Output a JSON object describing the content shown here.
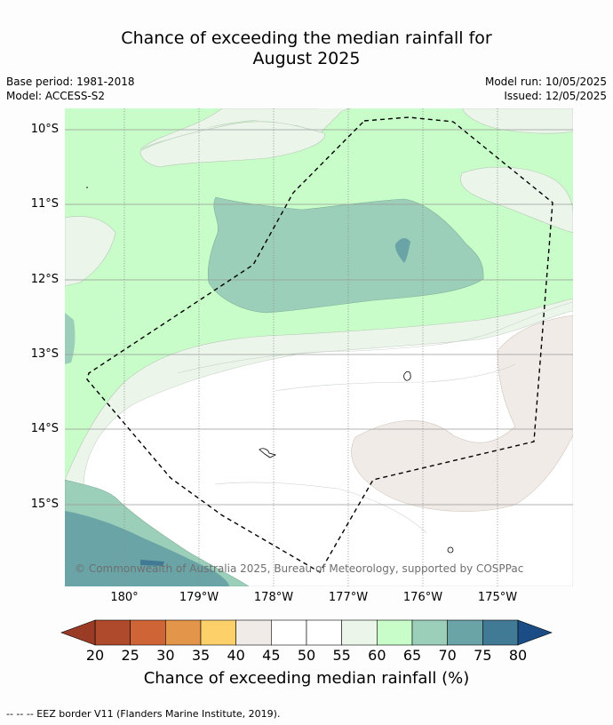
{
  "title_line1": "Chance of exceeding the median rainfall for",
  "title_line2": "August 2025",
  "base_period": "Base period: 1981-2018",
  "model": "Model: ACCESS-S2",
  "model_run": "Model run: 10/05/2025",
  "issued": "Issued: 12/05/2025",
  "lat_labels": [
    "10°S",
    "11°S",
    "12°S",
    "13°S",
    "14°S",
    "15°S"
  ],
  "lon_labels": [
    "180°",
    "179°W",
    "178°W",
    "177°W",
    "176°W",
    "175°W"
  ],
  "copyright": "© Commonwealth of Australia 2025, Bureau of Meteorology, supported by COSPPac",
  "colorbar": {
    "ticks": [
      "20",
      "25",
      "30",
      "35",
      "40",
      "45",
      "50",
      "55",
      "60",
      "65",
      "70",
      "75",
      "80"
    ],
    "colors": [
      "#b04a2c",
      "#cf6536",
      "#e39549",
      "#fdd06a",
      "#f0ebe6",
      "#ffffff",
      "#ffffff",
      "#ebf5ea",
      "#c8fcc8",
      "#9ccfb9",
      "#6aa4a7",
      "#417a95"
    ],
    "under_color": "#9a3b26",
    "over_color": "#1b4c85",
    "label": "Chance of exceeding median rainfall (%)"
  },
  "footer": "--  --  -- EEZ border V11 (Flanders Marine Institute, 2019)."
}
